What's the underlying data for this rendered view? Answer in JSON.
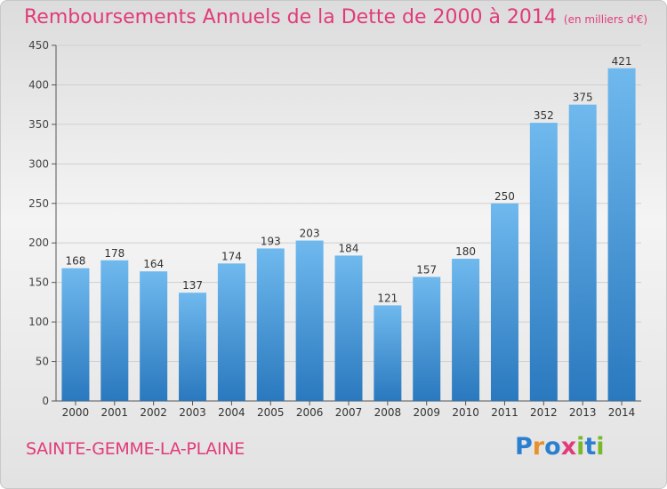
{
  "title": {
    "main": "Remboursements Annuels de la Dette de 2000 à 2014",
    "unit": "(en milliers d'€)"
  },
  "commune": "SAINTE-GEMME-LA-PLAINE",
  "logo": {
    "text": "Proxiti",
    "letters": [
      {
        "ch": "P",
        "color": "#2b7fd0"
      },
      {
        "ch": "r",
        "color": "#e8902a"
      },
      {
        "ch": "o",
        "color": "#2b7fd0"
      },
      {
        "ch": "x",
        "color": "#e23a7a"
      },
      {
        "ch": "i",
        "color": "#79b928"
      },
      {
        "ch": "t",
        "color": "#2b7fd0"
      },
      {
        "ch": "i",
        "color": "#79b928"
      }
    ]
  },
  "colors": {
    "bar_top": "#6fb9ee",
    "bar_bottom": "#2a78be",
    "title": "#e23a7a",
    "grid": "#cfcfcf"
  },
  "chart_data": {
    "type": "bar",
    "categories": [
      "2000",
      "2001",
      "2002",
      "2003",
      "2004",
      "2005",
      "2006",
      "2007",
      "2008",
      "2009",
      "2010",
      "2011",
      "2012",
      "2013",
      "2014"
    ],
    "values": [
      168,
      178,
      164,
      137,
      174,
      193,
      203,
      184,
      121,
      157,
      180,
      250,
      352,
      375,
      421
    ],
    "title": "Remboursements Annuels de la Dette de 2000 à 2014",
    "xlabel": "",
    "ylabel": "",
    "ylim": [
      0,
      450
    ],
    "yticks": [
      0,
      50,
      100,
      150,
      200,
      250,
      300,
      350,
      400,
      450
    ],
    "grid": true,
    "data_labels": true
  }
}
